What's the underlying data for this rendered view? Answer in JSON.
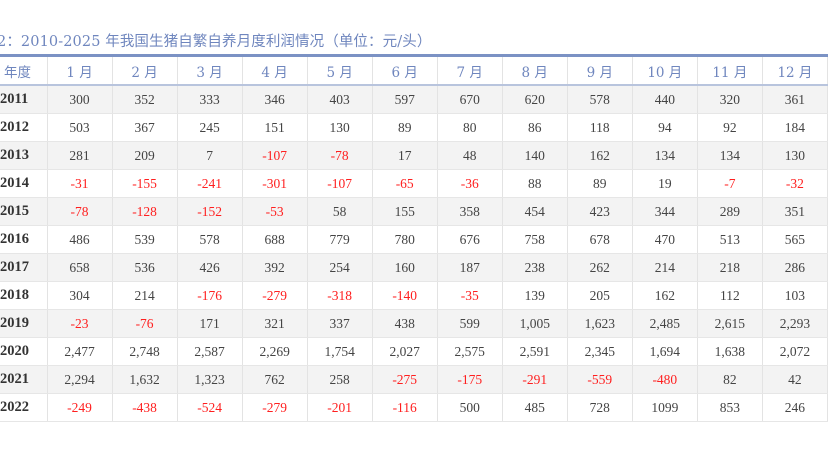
{
  "title": "2：2010-2025 年我国生猪自繁自养月度利润情况（单位：元/头）",
  "colors": {
    "header_text": "#6f86be",
    "negative": "#ff1f1f",
    "text": "#444444",
    "stripe": "#f3f3f3"
  },
  "table": {
    "headers": [
      "年度",
      "1 月",
      "2 月",
      "3 月",
      "4 月",
      "5 月",
      "6 月",
      "7 月",
      "8 月",
      "9 月",
      "10 月",
      "11 月",
      "12 月"
    ],
    "rows": [
      {
        "year": "2011",
        "values": [
          "300",
          "352",
          "333",
          "346",
          "403",
          "597",
          "670",
          "620",
          "578",
          "440",
          "320",
          "361"
        ]
      },
      {
        "year": "2012",
        "values": [
          "503",
          "367",
          "245",
          "151",
          "130",
          "89",
          "80",
          "86",
          "118",
          "94",
          "92",
          "184"
        ]
      },
      {
        "year": "2013",
        "values": [
          "281",
          "209",
          "7",
          "-107",
          "-78",
          "17",
          "48",
          "140",
          "162",
          "134",
          "134",
          "130"
        ]
      },
      {
        "year": "2014",
        "values": [
          "-31",
          "-155",
          "-241",
          "-301",
          "-107",
          "-65",
          "-36",
          "88",
          "89",
          "19",
          "-7",
          "-32"
        ]
      },
      {
        "year": "2015",
        "values": [
          "-78",
          "-128",
          "-152",
          "-53",
          "58",
          "155",
          "358",
          "454",
          "423",
          "344",
          "289",
          "351"
        ]
      },
      {
        "year": "2016",
        "values": [
          "486",
          "539",
          "578",
          "688",
          "779",
          "780",
          "676",
          "758",
          "678",
          "470",
          "513",
          "565"
        ]
      },
      {
        "year": "2017",
        "values": [
          "658",
          "536",
          "426",
          "392",
          "254",
          "160",
          "187",
          "238",
          "262",
          "214",
          "218",
          "286"
        ]
      },
      {
        "year": "2018",
        "values": [
          "304",
          "214",
          "-176",
          "-279",
          "-318",
          "-140",
          "-35",
          "139",
          "205",
          "162",
          "112",
          "103"
        ]
      },
      {
        "year": "2019",
        "values": [
          "-23",
          "-76",
          "171",
          "321",
          "337",
          "438",
          "599",
          "1,005",
          "1,623",
          "2,485",
          "2,615",
          "2,293"
        ]
      },
      {
        "year": "2020",
        "values": [
          "2,477",
          "2,748",
          "2,587",
          "2,269",
          "1,754",
          "2,027",
          "2,575",
          "2,591",
          "2,345",
          "1,694",
          "1,638",
          "2,072"
        ]
      },
      {
        "year": "2021",
        "values": [
          "2,294",
          "1,632",
          "1,323",
          "762",
          "258",
          "-275",
          "-175",
          "-291",
          "-559",
          "-480",
          "82",
          "42"
        ]
      },
      {
        "year": "2022",
        "values": [
          "-249",
          "-438",
          "-524",
          "-279",
          "-201",
          "-116",
          "500",
          "485",
          "728",
          "1099",
          "853",
          "246"
        ]
      }
    ]
  }
}
